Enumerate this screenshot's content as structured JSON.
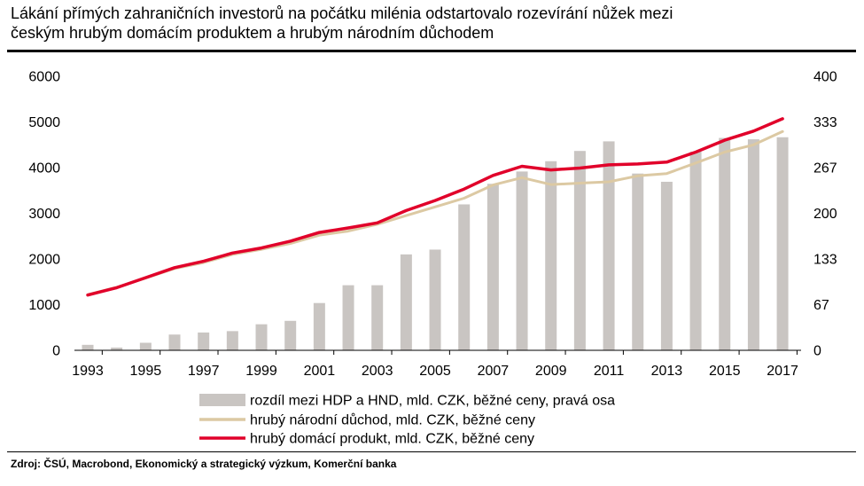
{
  "title_line1": "Lákání přímých zahraničních investorů na počátku milénia odstartovalo rozevírání nůžek mezi",
  "title_line2": "českým hrubým domácím produktem a hrubým národním důchodem",
  "source": "Zdroj: ČSÚ, Macrobond, Ekonomický a strategický výzkum, Komerční banka",
  "colors": {
    "bar": "#c9c5c2",
    "hnd": "#dcc9a3",
    "hdp": "#e1002a"
  },
  "chart_data": {
    "type": "bar",
    "x": [
      1993,
      1994,
      1995,
      1996,
      1997,
      1998,
      1999,
      2000,
      2001,
      2002,
      2003,
      2004,
      2005,
      2006,
      2007,
      2008,
      2009,
      2010,
      2011,
      2012,
      2013,
      2014,
      2015,
      2016,
      2017
    ],
    "x_tick_labels": [
      "1993",
      "1995",
      "1997",
      "1999",
      "2001",
      "2003",
      "2005",
      "2007",
      "2009",
      "2011",
      "2013",
      "2015",
      "2017"
    ],
    "y_left_ticks": [
      "0",
      "1000",
      "2000",
      "3000",
      "4000",
      "5000",
      "6000"
    ],
    "y_right_ticks": [
      "0",
      "67",
      "133",
      "200",
      "267",
      "333",
      "400"
    ],
    "ylim_left": [
      0,
      6000
    ],
    "ylim_right": [
      0,
      400
    ],
    "grid": false,
    "legend_position": "bottom",
    "series": [
      {
        "name": "rozdíl mezi HDP a HND, mld. CZK, běžné ceny, pravá osa",
        "type": "bar",
        "axis": "right",
        "values": [
          8,
          4,
          11,
          23,
          26,
          28,
          38,
          43,
          69,
          95,
          95,
          140,
          147,
          213,
          243,
          261,
          276,
          291,
          305,
          258,
          246,
          290,
          310,
          308,
          311
        ]
      },
      {
        "name": "hrubý národní důchod, mld. CZK, běžné ceny",
        "type": "line",
        "axis": "left",
        "values": [
          1220,
          1380,
          1580,
          1790,
          1920,
          2100,
          2210,
          2340,
          2520,
          2610,
          2760,
          2950,
          3140,
          3330,
          3620,
          3780,
          3630,
          3660,
          3690,
          3820,
          3870,
          4100,
          4340,
          4500,
          4790
        ]
      },
      {
        "name": "hrubý domácí produkt, mld. CZK, běžné ceny",
        "type": "line",
        "axis": "left",
        "values": [
          1210,
          1370,
          1590,
          1810,
          1950,
          2130,
          2240,
          2390,
          2580,
          2680,
          2790,
          3060,
          3280,
          3530,
          3830,
          4030,
          3950,
          3990,
          4060,
          4080,
          4120,
          4340,
          4600,
          4800,
          5070
        ]
      }
    ]
  }
}
